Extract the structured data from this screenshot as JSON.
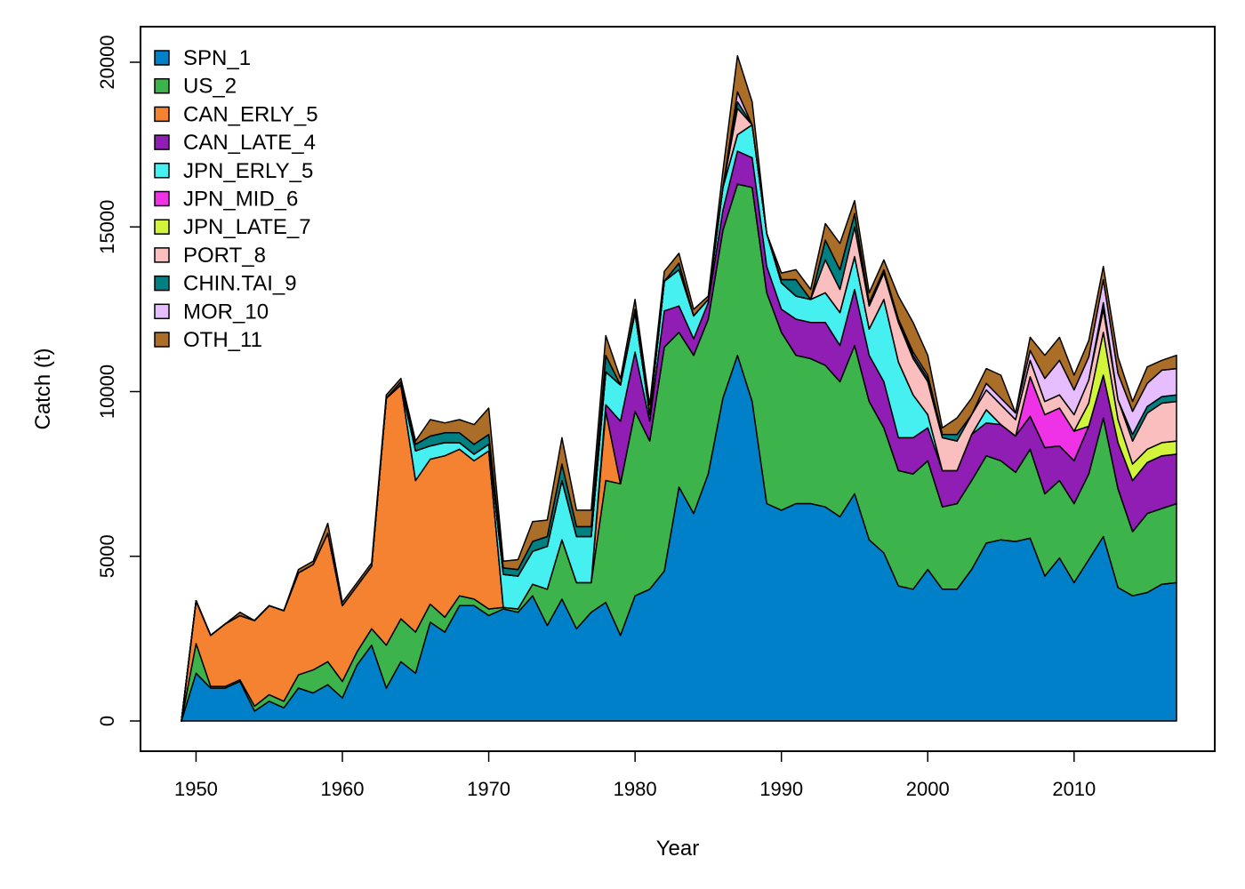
{
  "chart_data": {
    "type": "area",
    "xlabel": "Year",
    "ylabel": "Catch (t)",
    "xlim": [
      1949,
      2017
    ],
    "ylim": [
      0,
      20000
    ],
    "xticks": [
      1950,
      1960,
      1970,
      1980,
      1990,
      2000,
      2010
    ],
    "yticks": [
      0,
      5000,
      10000,
      15000,
      20000
    ],
    "legend_position": "top-left",
    "x": [
      1949,
      1950,
      1951,
      1952,
      1953,
      1954,
      1955,
      1956,
      1957,
      1958,
      1959,
      1960,
      1961,
      1962,
      1963,
      1964,
      1965,
      1966,
      1967,
      1968,
      1969,
      1970,
      1971,
      1972,
      1973,
      1974,
      1975,
      1976,
      1977,
      1978,
      1979,
      1980,
      1981,
      1982,
      1983,
      1984,
      1985,
      1986,
      1987,
      1988,
      1989,
      1990,
      1991,
      1992,
      1993,
      1994,
      1995,
      1996,
      1997,
      1998,
      1999,
      2000,
      2001,
      2002,
      2003,
      2004,
      2005,
      2006,
      2007,
      2008,
      2009,
      2010,
      2011,
      2012,
      2013,
      2014,
      2015,
      2016,
      2017
    ],
    "series": [
      {
        "name": "SPN_1",
        "color": "#0080C8",
        "values": [
          0,
          1450,
          1000,
          1000,
          1200,
          300,
          600,
          400,
          1000,
          850,
          1100,
          700,
          1700,
          2300,
          1000,
          1800,
          1450,
          3000,
          2700,
          3500,
          3500,
          3200,
          3400,
          3300,
          3800,
          2900,
          3700,
          2800,
          3300,
          3600,
          2600,
          3800,
          4000,
          4550,
          7100,
          6300,
          7500,
          9800,
          11100,
          9700,
          6600,
          6400,
          6600,
          6600,
          6500,
          6200,
          6900,
          5500,
          5100,
          4100,
          4000,
          4600,
          4000,
          4000,
          4600,
          5400,
          5500,
          5450,
          5550,
          4400,
          4950,
          4200,
          4900,
          5600,
          4050,
          3800,
          3900,
          4150,
          4200
        ]
      },
      {
        "name": "US_2",
        "color": "#3CB44B",
        "values": [
          0,
          900,
          50,
          50,
          50,
          150,
          200,
          200,
          400,
          700,
          700,
          500,
          400,
          500,
          1300,
          1300,
          1250,
          550,
          450,
          300,
          200,
          200,
          50,
          100,
          350,
          1100,
          1800,
          1400,
          900,
          3700,
          4600,
          5600,
          4500,
          6800,
          4700,
          4800,
          4700,
          5100,
          5200,
          6500,
          6400,
          5400,
          4500,
          4400,
          4300,
          4100,
          4500,
          4200,
          3800,
          3500,
          3500,
          3300,
          2500,
          2600,
          2700,
          2650,
          2400,
          2100,
          2700,
          2500,
          2350,
          2400,
          2600,
          3600,
          3000,
          1950,
          2400,
          2300,
          2400
        ]
      },
      {
        "name": "CAN_ERLY_5",
        "color": "#F58231",
        "values": [
          0,
          1300,
          1550,
          1900,
          1950,
          2600,
          2700,
          2750,
          3100,
          3200,
          3900,
          2300,
          2000,
          1900,
          7500,
          7100,
          4600,
          4400,
          4900,
          4450,
          4200,
          4800,
          0,
          0,
          0,
          0,
          0,
          0,
          0,
          2100,
          0,
          0,
          0,
          0,
          0,
          0,
          0,
          0,
          0,
          0,
          0,
          0,
          0,
          0,
          0,
          0,
          0,
          0,
          0,
          0,
          0,
          0,
          0,
          0,
          0,
          0,
          0,
          0,
          0,
          0,
          0,
          0,
          0,
          0,
          0,
          0,
          0,
          0,
          0
        ]
      },
      {
        "name": "CAN_LATE_4",
        "color": "#911EB4",
        "values": [
          0,
          0,
          0,
          0,
          0,
          0,
          0,
          0,
          0,
          0,
          0,
          0,
          0,
          0,
          0,
          0,
          0,
          0,
          0,
          0,
          0,
          0,
          0,
          0,
          0,
          0,
          0,
          0,
          0,
          200,
          1900,
          1800,
          600,
          1100,
          800,
          500,
          500,
          600,
          1000,
          900,
          800,
          700,
          1100,
          1100,
          1300,
          1100,
          1700,
          1400,
          1400,
          1000,
          1100,
          1000,
          1100,
          1000,
          1400,
          1000,
          1100,
          1100,
          1000,
          1400,
          1050,
          1300,
          1450,
          1300,
          1400,
          1550,
          1550,
          1600,
          1500
        ]
      },
      {
        "name": "JPN_ERLY_5",
        "color": "#46F0F0",
        "values": [
          0,
          0,
          0,
          0,
          0,
          0,
          0,
          0,
          0,
          0,
          0,
          0,
          0,
          0,
          0,
          0,
          900,
          400,
          400,
          200,
          200,
          200,
          1000,
          1000,
          1000,
          1300,
          1800,
          1400,
          1400,
          1000,
          1100,
          1200,
          200,
          900,
          1100,
          700,
          100,
          700,
          500,
          1000,
          1000,
          800,
          700,
          700,
          900,
          1000,
          1000,
          800,
          2500,
          2300,
          1300,
          400,
          0,
          0,
          0,
          400,
          0,
          0,
          0,
          0,
          0,
          0,
          0,
          0,
          0,
          0,
          0,
          0,
          0
        ]
      },
      {
        "name": "JPN_MID_6",
        "color": "#F032E6",
        "values": [
          0,
          0,
          0,
          0,
          0,
          0,
          0,
          0,
          0,
          0,
          0,
          0,
          0,
          0,
          0,
          0,
          0,
          0,
          0,
          0,
          0,
          0,
          0,
          0,
          0,
          0,
          0,
          0,
          0,
          0,
          0,
          0,
          0,
          0,
          0,
          0,
          0,
          0,
          0,
          0,
          0,
          0,
          0,
          0,
          0,
          0,
          0,
          0,
          0,
          0,
          0,
          0,
          0,
          0,
          0,
          0,
          0,
          0,
          1200,
          1000,
          1150,
          900,
          0,
          0,
          0,
          0,
          0,
          0,
          0
        ]
      },
      {
        "name": "JPN_LATE_7",
        "color": "#D2F53C",
        "values": [
          0,
          0,
          0,
          0,
          0,
          0,
          0,
          0,
          0,
          0,
          0,
          0,
          0,
          0,
          0,
          0,
          0,
          0,
          0,
          0,
          0,
          0,
          0,
          0,
          0,
          0,
          0,
          0,
          0,
          0,
          0,
          0,
          0,
          0,
          0,
          0,
          0,
          0,
          0,
          0,
          0,
          0,
          0,
          0,
          0,
          0,
          0,
          0,
          0,
          0,
          0,
          0,
          0,
          0,
          0,
          0,
          0,
          0,
          0,
          0,
          0,
          0,
          700,
          1300,
          700,
          500,
          400,
          400,
          400
        ]
      },
      {
        "name": "PORT_8",
        "color": "#FABEBE",
        "values": [
          0,
          0,
          0,
          0,
          0,
          0,
          0,
          0,
          0,
          0,
          0,
          0,
          0,
          0,
          0,
          0,
          0,
          0,
          0,
          0,
          0,
          0,
          0,
          0,
          0,
          0,
          0,
          0,
          0,
          0,
          0,
          0,
          0,
          0,
          0,
          0,
          0,
          0,
          800,
          0,
          0,
          0,
          0,
          0,
          1000,
          700,
          900,
          700,
          800,
          1200,
          1100,
          1000,
          1000,
          900,
          600,
          600,
          600,
          500,
          500,
          400,
          400,
          500,
          700,
          700,
          600,
          700,
          1100,
          1200,
          1200
        ]
      },
      {
        "name": "CHIN.TAI_9",
        "color": "#008080",
        "values": [
          0,
          0,
          0,
          0,
          0,
          0,
          0,
          0,
          0,
          0,
          0,
          0,
          0,
          0,
          0,
          100,
          200,
          300,
          300,
          300,
          300,
          300,
          200,
          200,
          300,
          300,
          500,
          300,
          300,
          500,
          0,
          100,
          0,
          0,
          200,
          0,
          0,
          0,
          200,
          0,
          0,
          100,
          500,
          0,
          600,
          600,
          400,
          0,
          0,
          0,
          100,
          100,
          100,
          200,
          0,
          0,
          0,
          0,
          0,
          0,
          0,
          0,
          0,
          200,
          0,
          200,
          200,
          200,
          200
        ]
      },
      {
        "name": "MOR_10",
        "color": "#E6BEFF",
        "values": [
          0,
          0,
          0,
          0,
          0,
          0,
          0,
          0,
          0,
          0,
          0,
          0,
          0,
          0,
          0,
          0,
          0,
          0,
          0,
          0,
          0,
          0,
          0,
          0,
          0,
          0,
          0,
          0,
          0,
          0,
          0,
          0,
          0,
          0,
          0,
          0,
          0,
          0,
          300,
          0,
          0,
          0,
          0,
          0,
          0,
          0,
          0,
          100,
          100,
          100,
          100,
          100,
          0,
          0,
          0,
          200,
          200,
          200,
          300,
          700,
          1050,
          750,
          700,
          700,
          800,
          700,
          700,
          800,
          800
        ]
      },
      {
        "name": "OTH_11",
        "color": "#AA6E28",
        "values": [
          0,
          0,
          0,
          0,
          100,
          0,
          0,
          0,
          100,
          100,
          300,
          100,
          100,
          100,
          100,
          100,
          100,
          500,
          300,
          400,
          600,
          800,
          200,
          300,
          600,
          500,
          800,
          500,
          500,
          600,
          200,
          300,
          300,
          300,
          300,
          200,
          100,
          500,
          1100,
          700,
          0,
          200,
          300,
          300,
          500,
          800,
          400,
          300,
          300,
          700,
          900,
          600,
          200,
          500,
          500,
          450,
          700,
          0,
          400,
          700,
          700,
          450,
          500,
          400,
          500,
          300,
          500,
          300,
          400
        ]
      }
    ]
  }
}
